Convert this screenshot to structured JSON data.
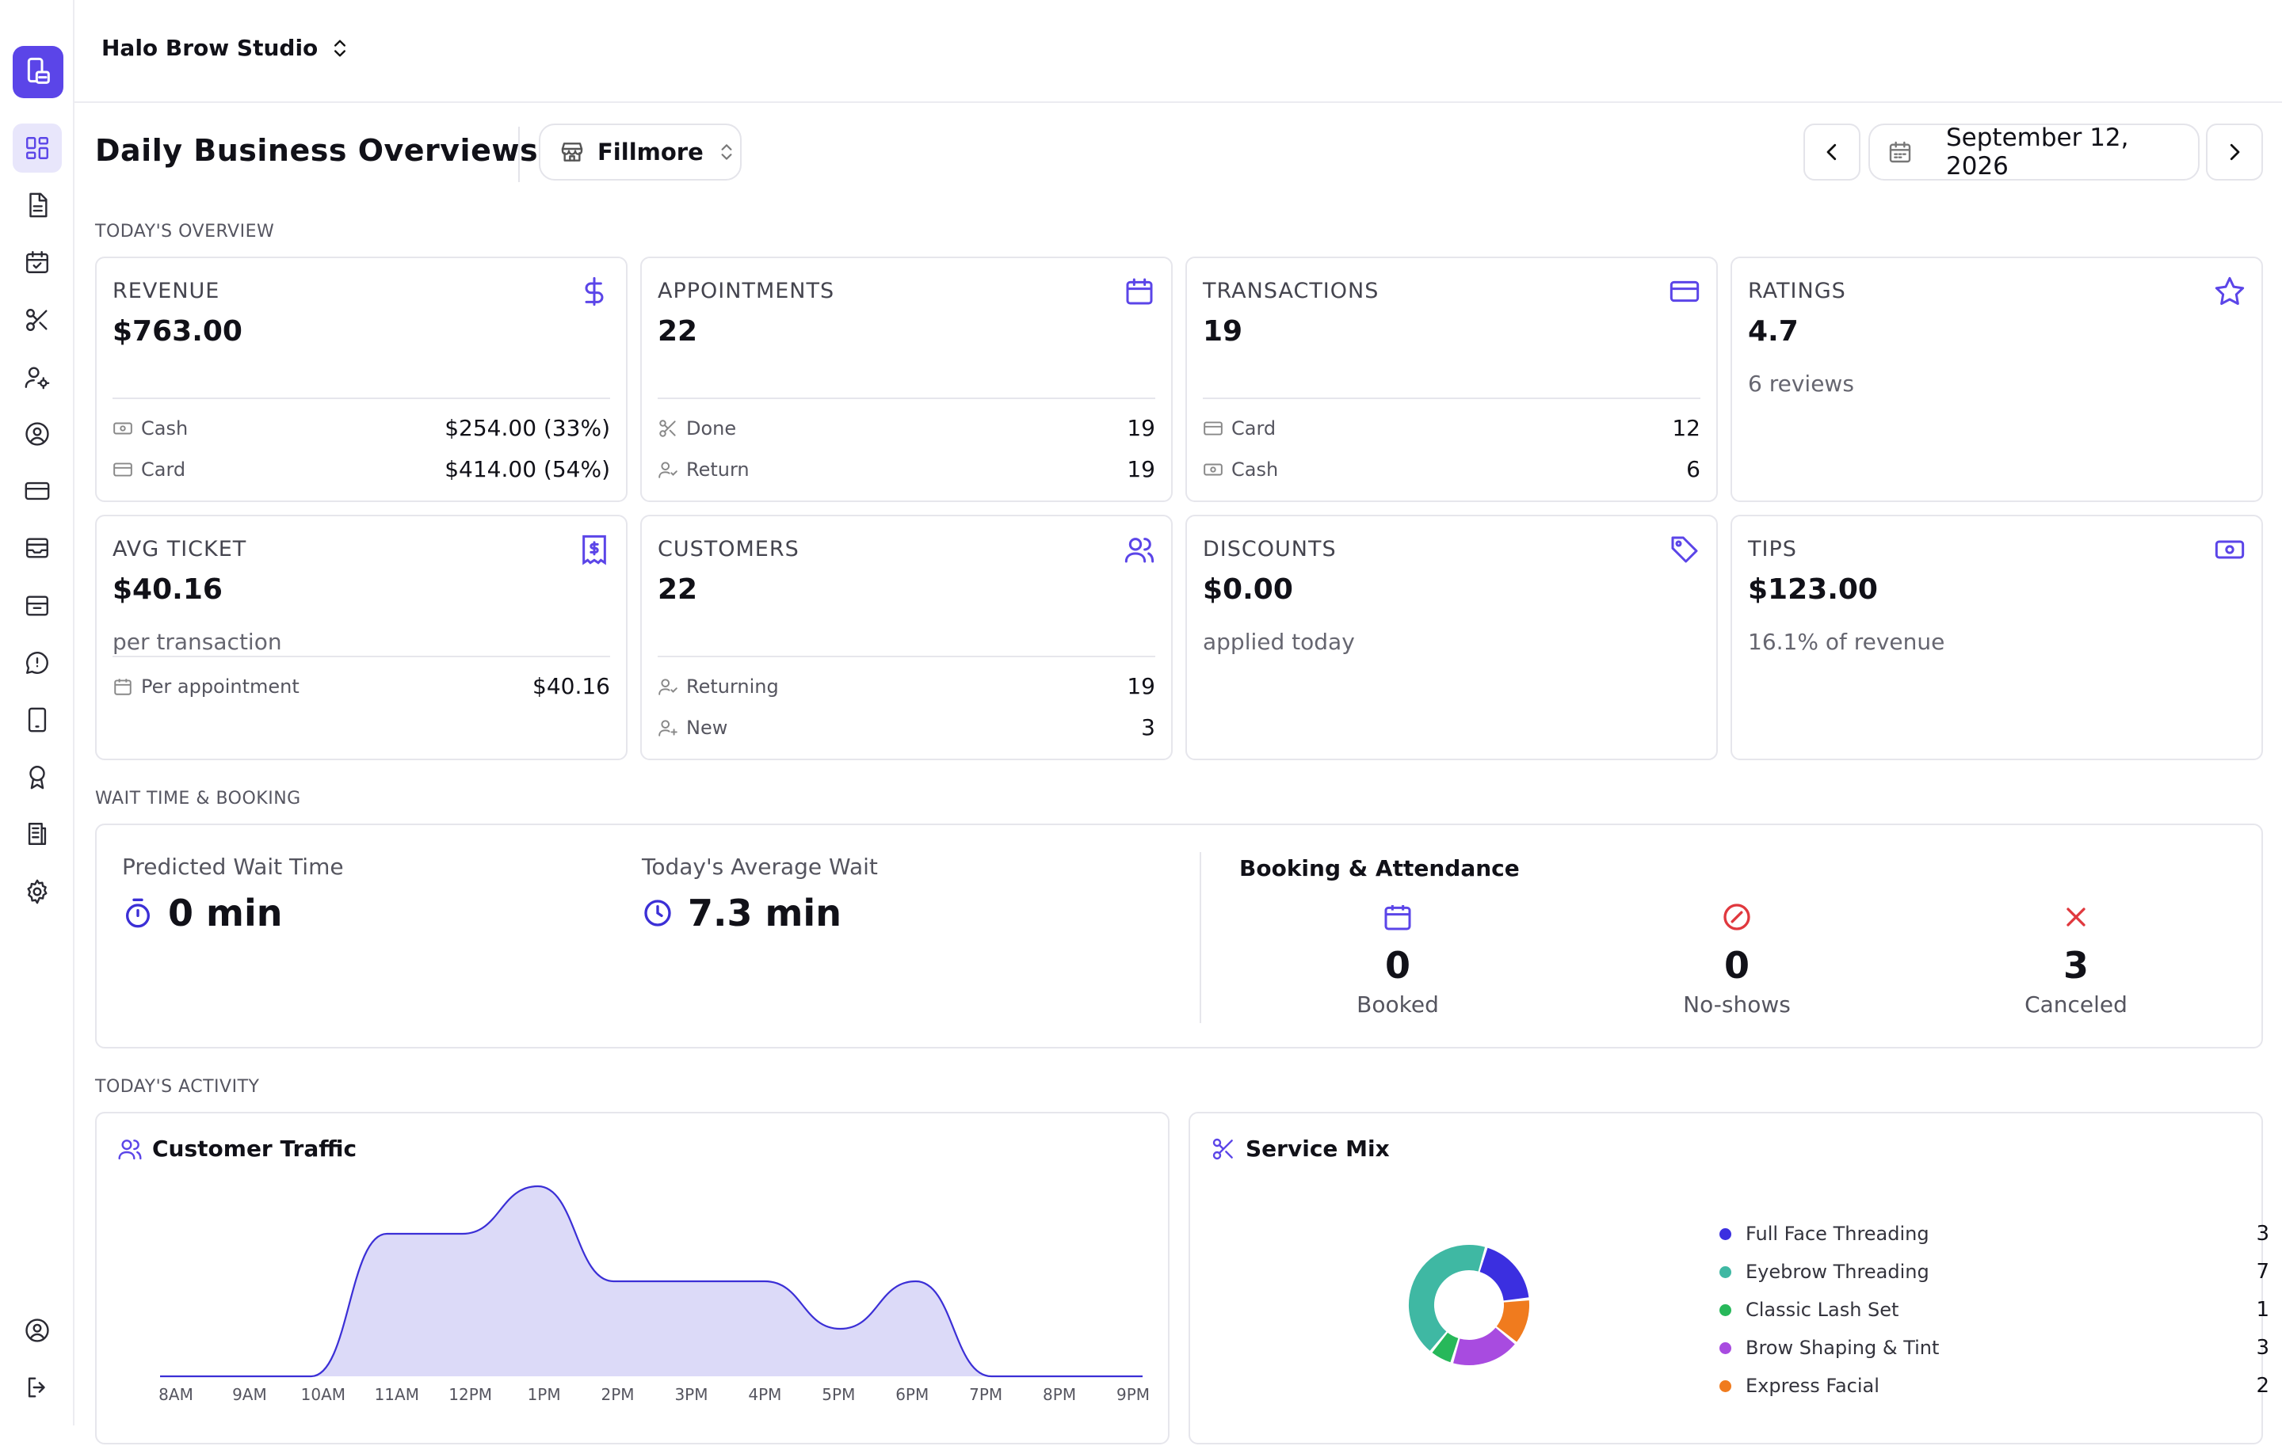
{
  "app": {
    "studio_name": "Halo Brow Studio"
  },
  "sidebar": {
    "items": [
      {
        "icon": "dashboard-icon",
        "active": true
      },
      {
        "icon": "document-icon"
      },
      {
        "icon": "calendar-check-icon"
      },
      {
        "icon": "scissors-icon"
      },
      {
        "icon": "user-cog-icon"
      },
      {
        "icon": "user-circle-icon"
      },
      {
        "icon": "credit-card-icon"
      },
      {
        "icon": "archive-icon"
      },
      {
        "icon": "inbox-icon"
      },
      {
        "icon": "message-icon"
      },
      {
        "icon": "tablet-icon"
      },
      {
        "icon": "award-icon"
      },
      {
        "icon": "receipt-icon"
      },
      {
        "icon": "settings-icon"
      }
    ],
    "bottom_items": [
      {
        "icon": "account-icon"
      },
      {
        "icon": "logout-icon"
      }
    ]
  },
  "header": {
    "title": "Daily Business Overviews",
    "location": "Fillmore",
    "date": "September 12, 2026"
  },
  "sections": {
    "overview": "TODAY'S OVERVIEW",
    "wait": "WAIT TIME & BOOKING",
    "activity": "TODAY'S ACTIVITY"
  },
  "cards": {
    "revenue": {
      "label": "REVENUE",
      "value": "$763.00",
      "rows": [
        {
          "label": "Cash",
          "value": "$254.00 (33%)"
        },
        {
          "label": "Card",
          "value": "$414.00 (54%)"
        }
      ]
    },
    "appointments": {
      "label": "APPOINTMENTS",
      "value": "22",
      "rows": [
        {
          "label": "Done",
          "value": "19"
        },
        {
          "label": "Return",
          "value": "19"
        }
      ]
    },
    "transactions": {
      "label": "TRANSACTIONS",
      "value": "19",
      "rows": [
        {
          "label": "Card",
          "value": "12"
        },
        {
          "label": "Cash",
          "value": "6"
        }
      ]
    },
    "ratings": {
      "label": "RATINGS",
      "value": "4.7",
      "sub": "6 reviews"
    },
    "avg_ticket": {
      "label": "AVG TICKET",
      "value": "$40.16",
      "sub": "per transaction",
      "rows": [
        {
          "label": "Per appointment",
          "value": "$40.16"
        }
      ]
    },
    "customers": {
      "label": "CUSTOMERS",
      "value": "22",
      "rows": [
        {
          "label": "Returning",
          "value": "19"
        },
        {
          "label": "New",
          "value": "3"
        }
      ]
    },
    "discounts": {
      "label": "DISCOUNTS",
      "value": "$0.00",
      "sub": "applied today"
    },
    "tips": {
      "label": "TIPS",
      "value": "$123.00",
      "sub": "16.1% of revenue"
    }
  },
  "wait": {
    "predicted_label": "Predicted Wait Time",
    "predicted_value": "0 min",
    "average_label": "Today's Average Wait",
    "average_value": "7.3 min",
    "booking_title": "Booking & Attendance",
    "booked": {
      "value": "0",
      "label": "Booked"
    },
    "noshows": {
      "value": "0",
      "label": "No-shows"
    },
    "canceled": {
      "value": "3",
      "label": "Canceled"
    }
  },
  "traffic": {
    "title": "Customer Traffic"
  },
  "service_mix": {
    "title": "Service Mix"
  },
  "colors": {
    "accent": "#5b45e8",
    "traffic_fill": "#dcdaf8",
    "traffic_line": "#3b2fd6",
    "danger": "#e0383e"
  },
  "chart_data": [
    {
      "type": "area",
      "title": "Customer Traffic",
      "x": [
        "8AM",
        "9AM",
        "10AM",
        "11AM",
        "12PM",
        "1PM",
        "2PM",
        "3PM",
        "4PM",
        "5PM",
        "6PM",
        "7PM",
        "8PM",
        "9PM"
      ],
      "series": [
        {
          "values": [
            0,
            0,
            0,
            3,
            3,
            4,
            2,
            2,
            2,
            1,
            2,
            0,
            0,
            0
          ]
        }
      ],
      "ylim": [
        0,
        4
      ],
      "grid": false
    },
    {
      "type": "pie",
      "title": "Service Mix",
      "donut": true,
      "legend_position": "right",
      "slices": [
        {
          "label": "Full Face Threading",
          "value": 3,
          "color": "#3b2fe0"
        },
        {
          "label": "Eyebrow Threading",
          "value": 7,
          "color": "#3fb8a3"
        },
        {
          "label": "Classic Lash Set",
          "value": 1,
          "color": "#27b85a"
        },
        {
          "label": "Brow Shaping & Tint",
          "value": 3,
          "color": "#a84be0"
        },
        {
          "label": "Express Facial",
          "value": 2,
          "color": "#f07b1e"
        }
      ]
    }
  ]
}
